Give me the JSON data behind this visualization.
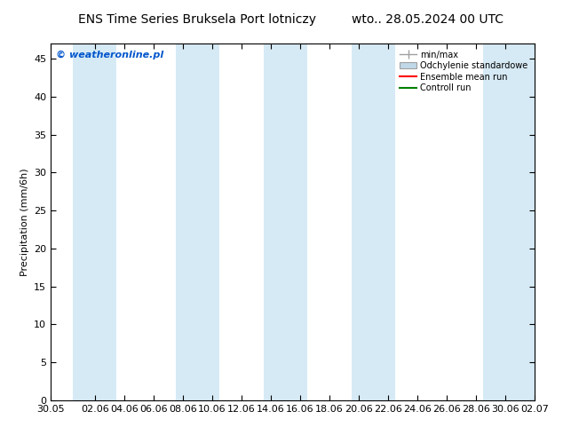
{
  "title_left": "ENS Time Series Bruksela Port lotniczy",
  "title_right": "wto.. 28.05.2024 00 UTC",
  "ylabel": "Precipitation (mm/6h)",
  "copyright": "© weatheronline.pl",
  "ylim": [
    0,
    47
  ],
  "yticks": [
    0,
    5,
    10,
    15,
    20,
    25,
    30,
    35,
    40,
    45
  ],
  "x_start": 0,
  "x_end": 33,
  "xtick_labels": [
    "30.05",
    "02.06",
    "04.06",
    "06.06",
    "08.06",
    "10.06",
    "12.06",
    "14.06",
    "16.06",
    "18.06",
    "20.06",
    "22.06",
    "24.06",
    "26.06",
    "28.06",
    "30.06",
    "02.07"
  ],
  "xtick_positions": [
    0,
    3,
    5,
    7,
    9,
    11,
    13,
    15,
    17,
    19,
    21,
    23,
    25,
    27,
    29,
    31,
    33
  ],
  "shading_bands": [
    [
      1.5,
      4.5
    ],
    [
      8.5,
      11.5
    ],
    [
      14.5,
      17.5
    ],
    [
      20.5,
      23.5
    ],
    [
      29.5,
      33.0
    ]
  ],
  "shading_color": "#d6eaf5",
  "background_color": "#ffffff",
  "title_fontsize": 10,
  "axis_fontsize": 8,
  "tick_fontsize": 8,
  "copyright_color": "#0055cc",
  "copyright_fontsize": 8,
  "legend_color_minmax": "#a0a0a0",
  "legend_color_std": "#c0d8e8",
  "legend_color_ensemble": "#ff0000",
  "legend_color_control": "#008000"
}
